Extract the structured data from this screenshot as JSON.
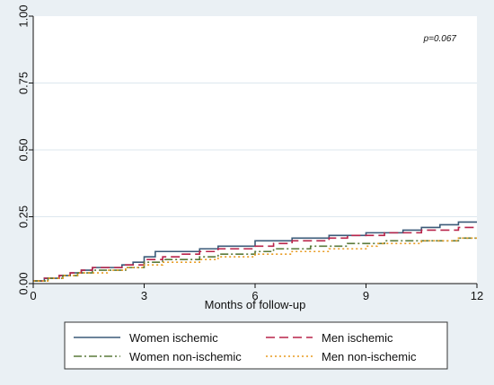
{
  "chart_data": {
    "type": "line",
    "xlabel": "Months of follow-up",
    "ylabel": "",
    "xlim": [
      0,
      12
    ],
    "ylim": [
      0,
      1
    ],
    "x_ticks": [
      "0",
      "3",
      "6",
      "9",
      "12"
    ],
    "y_ticks": [
      "0.00",
      "0.25",
      "0.50",
      "0.75",
      "1.00"
    ],
    "grid": "horizontal",
    "legend_position": "bottom",
    "annotation": "p=0.067",
    "series": [
      {
        "name": "Women ischemic",
        "color": "#3b5a78",
        "dash": "solid",
        "step": true,
        "x": [
          0,
          0.3,
          0.7,
          1.0,
          1.3,
          1.6,
          2.0,
          2.4,
          2.7,
          3.0,
          3.3,
          3.8,
          4.5,
          5.0,
          5.4,
          6.0,
          6.5,
          7.0,
          7.5,
          8.0,
          8.5,
          9.0,
          9.5,
          10.0,
          10.5,
          11.0,
          11.5,
          12.0
        ],
        "y": [
          0.01,
          0.02,
          0.03,
          0.04,
          0.05,
          0.06,
          0.06,
          0.07,
          0.08,
          0.1,
          0.12,
          0.12,
          0.13,
          0.14,
          0.14,
          0.16,
          0.16,
          0.17,
          0.17,
          0.18,
          0.18,
          0.19,
          0.19,
          0.2,
          0.21,
          0.22,
          0.23,
          0.23
        ]
      },
      {
        "name": "Men ischemic",
        "color": "#b8234a",
        "dash": "10,5",
        "step": true,
        "x": [
          0,
          0.3,
          0.7,
          1.0,
          1.3,
          1.6,
          2.0,
          2.4,
          2.7,
          3.0,
          3.5,
          4.0,
          4.5,
          5.0,
          5.5,
          6.0,
          6.5,
          7.0,
          7.5,
          8.0,
          8.5,
          9.0,
          9.5,
          10.0,
          10.5,
          11.0,
          11.5,
          12.0
        ],
        "y": [
          0.01,
          0.02,
          0.03,
          0.04,
          0.05,
          0.06,
          0.06,
          0.07,
          0.07,
          0.09,
          0.1,
          0.11,
          0.12,
          0.13,
          0.13,
          0.14,
          0.15,
          0.16,
          0.16,
          0.17,
          0.18,
          0.18,
          0.19,
          0.19,
          0.2,
          0.2,
          0.21,
          0.21
        ]
      },
      {
        "name": "Women non-ischemic",
        "color": "#5a7a3a",
        "dash": "9,3,2,3",
        "step": true,
        "x": [
          0,
          0.4,
          0.8,
          1.2,
          1.6,
          2.0,
          2.5,
          3.0,
          3.5,
          4.0,
          4.5,
          5.0,
          5.5,
          6.0,
          6.5,
          7.0,
          7.5,
          8.0,
          8.5,
          9.0,
          9.5,
          10.0,
          10.5,
          11.0,
          11.5,
          12.0
        ],
        "y": [
          0.01,
          0.02,
          0.03,
          0.04,
          0.05,
          0.05,
          0.06,
          0.08,
          0.09,
          0.09,
          0.1,
          0.11,
          0.11,
          0.12,
          0.13,
          0.13,
          0.14,
          0.14,
          0.15,
          0.15,
          0.16,
          0.16,
          0.16,
          0.16,
          0.17,
          0.17
        ]
      },
      {
        "name": "Men non-ischemic",
        "color": "#e89a1e",
        "dash": "2,3",
        "step": true,
        "x": [
          0,
          0.4,
          0.8,
          1.2,
          1.6,
          2.0,
          2.5,
          3.0,
          3.5,
          4.0,
          4.5,
          5.0,
          5.5,
          6.0,
          6.5,
          7.0,
          7.5,
          8.0,
          8.5,
          9.0,
          9.3,
          9.6,
          10.0,
          10.5,
          11.0,
          11.5,
          12.0
        ],
        "y": [
          0.01,
          0.02,
          0.03,
          0.04,
          0.04,
          0.05,
          0.06,
          0.07,
          0.08,
          0.08,
          0.09,
          0.1,
          0.1,
          0.11,
          0.11,
          0.12,
          0.12,
          0.13,
          0.13,
          0.14,
          0.15,
          0.15,
          0.15,
          0.16,
          0.16,
          0.17,
          0.17
        ]
      }
    ]
  }
}
